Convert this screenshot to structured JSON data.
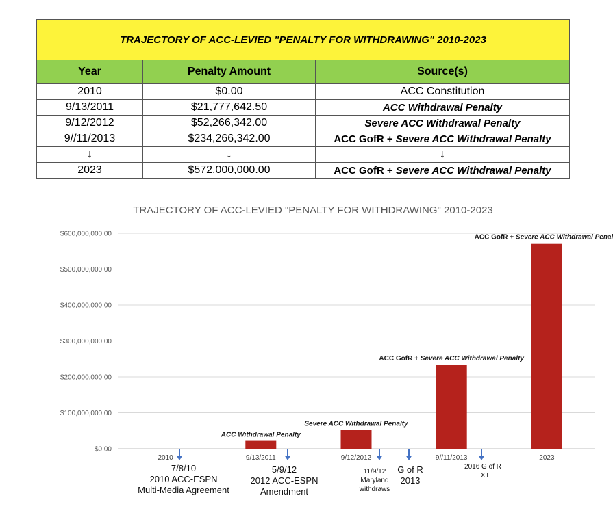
{
  "table": {
    "title": "TRAJECTORY OF ACC-LEVIED \"PENALTY FOR WITHDRAWING\" 2010-2023",
    "headers": [
      "Year",
      "Penalty Amount",
      "Source(s)"
    ],
    "rows": [
      {
        "year": "2010",
        "amount": "$0.00",
        "source": "ACC Constitution"
      },
      {
        "year": "9/13/2011",
        "amount": "$21,777,642.50",
        "source": "ACC Withdrawal Penalty"
      },
      {
        "year": "9/12/2012",
        "amount": "$52,266,342.00",
        "source": "Severe ACC Withdrawal Penalty"
      },
      {
        "year": "9//11/2013",
        "amount": "$234,266,342.00",
        "source_a": "ACC GofR + ",
        "source_b": "Severe ACC Withdrawal Penalty"
      },
      {
        "year": "2023",
        "amount": "$572,000,000.00",
        "source_a": "ACC GofR + ",
        "source_b": "Severe ACC Withdrawal Penalty"
      }
    ],
    "arrow_glyph": "↓"
  },
  "chart_data": {
    "type": "bar",
    "title": "TRAJECTORY OF ACC-LEVIED \"PENALTY FOR WITHDRAWING\" 2010-2023",
    "categories": [
      "2010",
      "9/13/2011",
      "9/12/2012",
      "9//11/2013",
      "2023"
    ],
    "values": [
      0,
      21777642.5,
      52266342,
      234266342,
      572000000
    ],
    "data_labels": [
      {
        "plain": "",
        "italic": ""
      },
      {
        "plain": "",
        "italic": "ACC Withdrawal Penalty"
      },
      {
        "plain": "",
        "italic": "Severe ACC Withdrawal Penalty"
      },
      {
        "plain": "ACC GofR + ",
        "italic": "Severe ACC Withdrawal Penalty"
      },
      {
        "plain": "ACC GofR + ",
        "italic": "Severe ACC Withdrawal Penalty"
      }
    ],
    "ylim": [
      0,
      600000000
    ],
    "yticks": [
      0,
      100000000,
      200000000,
      300000000,
      400000000,
      500000000,
      600000000
    ],
    "ytick_labels": [
      "$0.00",
      "$100,000,000.00",
      "$200,000,000.00",
      "$300,000,000.00",
      "$400,000,000.00",
      "$500,000,000.00",
      "$600,000,000.00"
    ],
    "xlabel": "",
    "ylabel": "",
    "grid": true,
    "legend": "none",
    "bar_color": "#b5221c",
    "annotations": [
      {
        "lines": [
          "7/8/10",
          "2010 ACC-ESPN",
          "Multi-Media Agreement"
        ],
        "size": "large"
      },
      {
        "lines": [
          "5/9/12",
          "2012 ACC-ESPN",
          "Amendment"
        ],
        "size": "large"
      },
      {
        "lines": [
          "11/9/12",
          "Maryland",
          "withdraws"
        ],
        "size": "small"
      },
      {
        "lines": [
          "G of R",
          "2013"
        ],
        "size": "large"
      },
      {
        "lines": [
          "2016 G of R",
          "EXT"
        ],
        "size": "small"
      }
    ]
  },
  "colors": {
    "title_bg": "#fdf33a",
    "header_bg": "#92d050",
    "bar": "#b5221c",
    "arrow": "#4472c4"
  }
}
